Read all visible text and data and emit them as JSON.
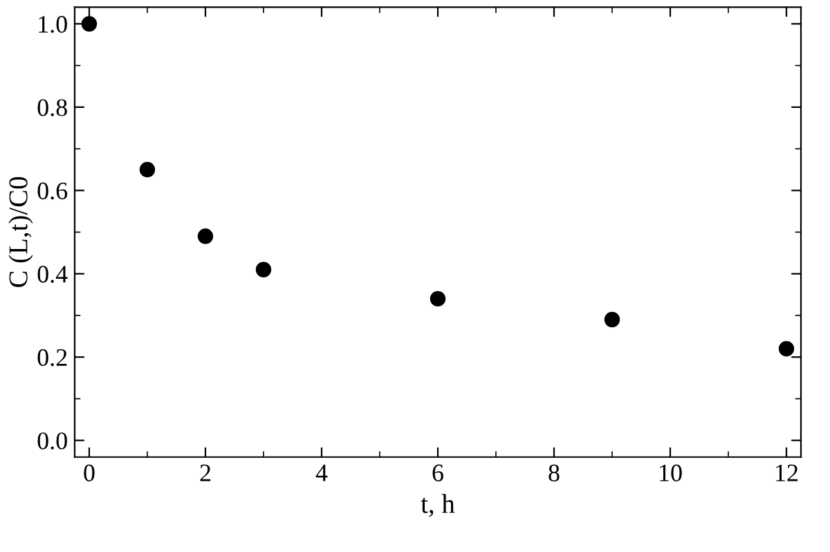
{
  "chart_data": {
    "type": "scatter",
    "xlabel": "t, h",
    "ylabel": "C (L,t)/C0",
    "x": [
      0,
      1,
      2,
      3,
      6,
      9,
      12
    ],
    "series": [
      {
        "color": "#000000",
        "values": [
          1.0,
          0.65,
          0.49,
          0.41,
          0.34,
          0.29,
          0.22
        ]
      }
    ],
    "marker": "circle",
    "grid": false,
    "legend": false,
    "xlim": [
      -0.25,
      12.25
    ],
    "ylim": [
      -0.04,
      1.04
    ],
    "xticks": [
      0,
      2,
      4,
      6,
      8,
      10,
      12
    ],
    "yticks": [
      {
        "value": 0,
        "label": "0.0"
      },
      0.2,
      0.4,
      0.6,
      0.8,
      {
        "value": 1,
        "label": "1.0"
      }
    ]
  }
}
